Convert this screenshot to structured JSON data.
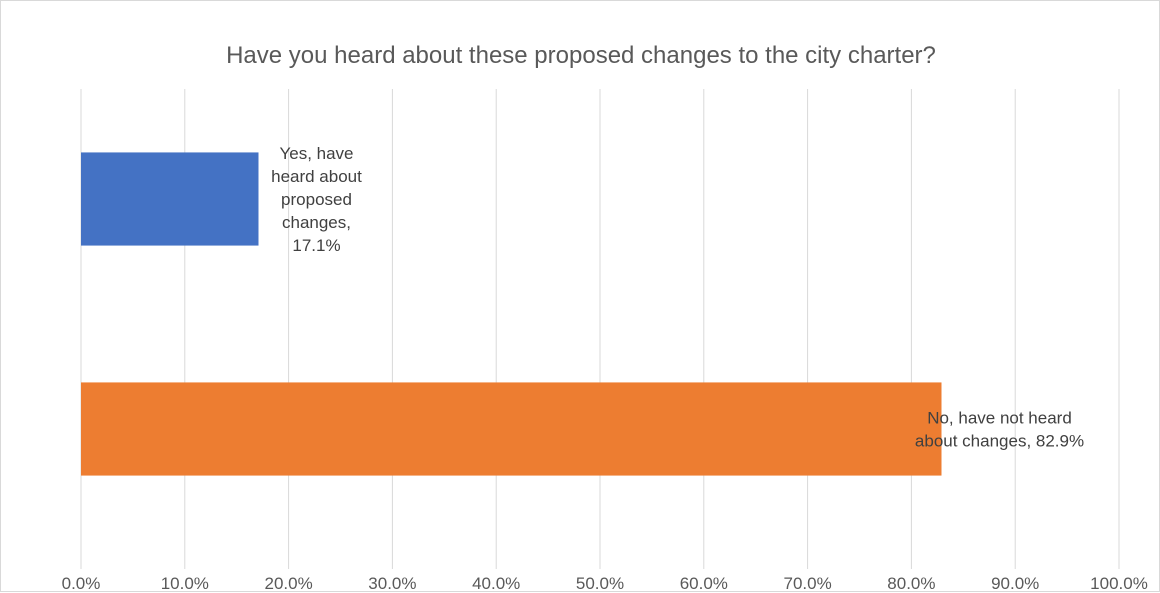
{
  "chart_data": {
    "type": "bar",
    "orientation": "horizontal",
    "title": "Have you heard about these proposed changes to the city charter?",
    "xlabel": "",
    "ylabel": "",
    "xlim": [
      0,
      100
    ],
    "x_ticks": [
      "0.0%",
      "10.0%",
      "20.0%",
      "30.0%",
      "40.0%",
      "50.0%",
      "60.0%",
      "70.0%",
      "80.0%",
      "90.0%",
      "100.0%"
    ],
    "grid": true,
    "legend": "none",
    "bars": [
      {
        "label_lines": [
          "Yes, have",
          "heard about",
          "proposed",
          "changes,",
          "17.1%"
        ],
        "value": 17.1,
        "color": "#4472c4"
      },
      {
        "label_lines": [
          "No, have not heard",
          "about changes, 82.9%"
        ],
        "value": 82.9,
        "color": "#ed7d31"
      }
    ]
  }
}
